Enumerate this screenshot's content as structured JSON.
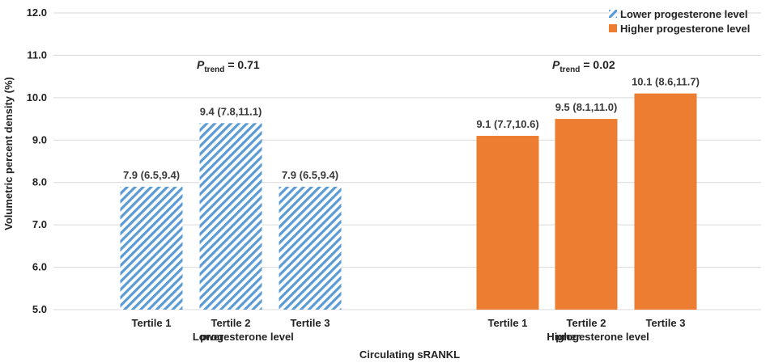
{
  "chart_data": {
    "type": "bar",
    "ylabel": "Volumetric percent density (%)",
    "xlabel": "Circulating sRANKL",
    "ylim": [
      5.0,
      12.0
    ],
    "yticks": [
      "5.0",
      "6.0",
      "7.0",
      "8.0",
      "9.0",
      "10.0",
      "11.0",
      "12.0"
    ],
    "grid": true,
    "legend": "top-right",
    "groups": [
      {
        "name": "Lower  progesterone level",
        "legend_label": "Lower  progesterone level",
        "group_label_line1": "Lower",
        "group_label_line2": "progesterone level",
        "pattern": "diagonal-hatch",
        "color": "#5b9bd5",
        "p_trend_value": "= 0.71",
        "categories": [
          "Tertile 1",
          "Tertile 2",
          "Tertile 3"
        ],
        "values": [
          7.9,
          9.4,
          7.9
        ],
        "labels": [
          "7.9 (6.5,9.4)",
          "9.4 (7.8,11.1)",
          "7.9 (6.5,9.4)"
        ]
      },
      {
        "name": "Higher progesterone level",
        "legend_label": "Higher progesterone level",
        "group_label_line1": "Higher",
        "group_label_line2": "progesterone level",
        "pattern": "solid",
        "color": "#ed7d31",
        "p_trend_value": "= 0.02",
        "categories": [
          "Tertile 1",
          "Tertile 2",
          "Tertile 3"
        ],
        "values": [
          9.1,
          9.5,
          10.1
        ],
        "labels": [
          "9.1 (7.7,10.6)",
          "9.5 (8.1,11.0)",
          "10.1 (8.6,11.7)"
        ]
      }
    ],
    "p_trend_symbol": "P",
    "p_trend_subscript": "trend"
  }
}
